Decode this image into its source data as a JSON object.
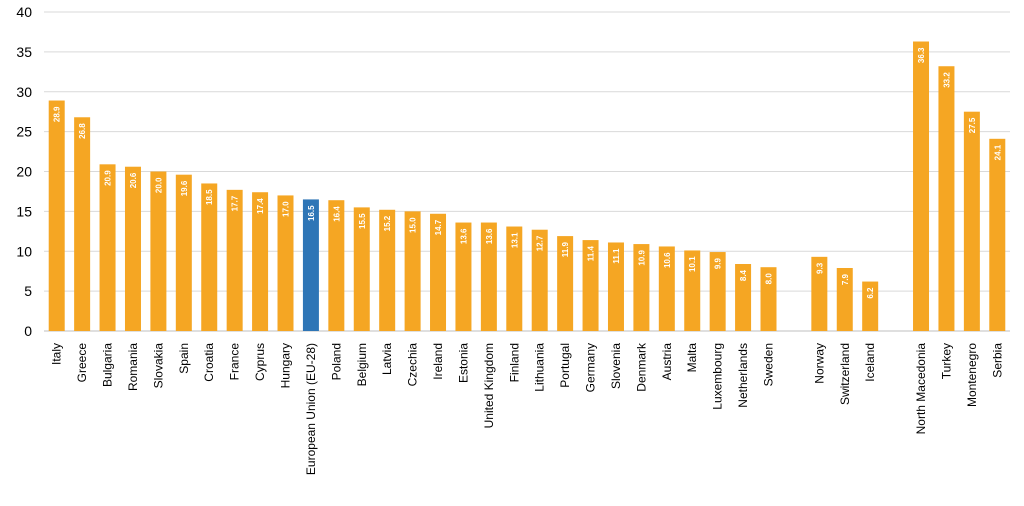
{
  "chart_data": {
    "type": "bar",
    "title": "",
    "xlabel": "",
    "ylabel": "",
    "ylim": [
      0,
      40
    ],
    "yticks": [
      "0",
      "5",
      "10",
      "15",
      "20",
      "25",
      "30",
      "35",
      "40"
    ],
    "grid": true,
    "legend": "none",
    "colors": {
      "default": "#F5A623",
      "highlight": "#2E75B6",
      "grid": "#d9d9d9",
      "text": "#000000"
    },
    "categories": [
      "Italy",
      "Greece",
      "Bulgaria",
      "Romania",
      "Slovakia",
      "Spain",
      "Croatia",
      "France",
      "Cyprus",
      "Hungary",
      "European Union (EU-28)",
      "Poland",
      "Belgium",
      "Latvia",
      "Czechia",
      "Ireland",
      "Estonia",
      "United Kingdom",
      "Finland",
      "Lithuania",
      "Portugal",
      "Germany",
      "Slovenia",
      "Denmark",
      "Austria",
      "Malta",
      "Luxembourg",
      "Netherlands",
      "Sweden",
      "",
      "Norway",
      "Switzerland",
      "Iceland",
      "",
      "North Macedonia",
      "Turkey",
      "Montenegro",
      "Serbia"
    ],
    "values": [
      28.9,
      26.8,
      20.9,
      20.6,
      20.0,
      19.6,
      18.5,
      17.7,
      17.4,
      17.0,
      16.5,
      16.4,
      15.5,
      15.2,
      15.0,
      14.7,
      13.6,
      13.6,
      13.1,
      12.7,
      11.9,
      11.4,
      11.1,
      10.9,
      10.6,
      10.1,
      9.9,
      8.4,
      8.0,
      null,
      9.3,
      7.9,
      6.2,
      null,
      36.3,
      33.2,
      27.5,
      24.1
    ],
    "value_labels": [
      "28.9",
      "26.8",
      "20.9",
      "20.6",
      "20.0",
      "19.6",
      "18.5",
      "17.7",
      "17.4",
      "17.0",
      "16.5",
      "16.4",
      "15.5",
      "15.2",
      "15.0",
      "14.7",
      "13.6",
      "13.6",
      "13.1",
      "12.7",
      "11.9",
      "11.4",
      "11.1",
      "10.9",
      "10.6",
      "10.1",
      "9.9",
      "8.4",
      "8.0",
      "",
      "9.3",
      "7.9",
      "6.2",
      "",
      "36.3",
      "33.2",
      "27.5",
      "24.1"
    ],
    "highlight_category": "European Union (EU-28)"
  }
}
